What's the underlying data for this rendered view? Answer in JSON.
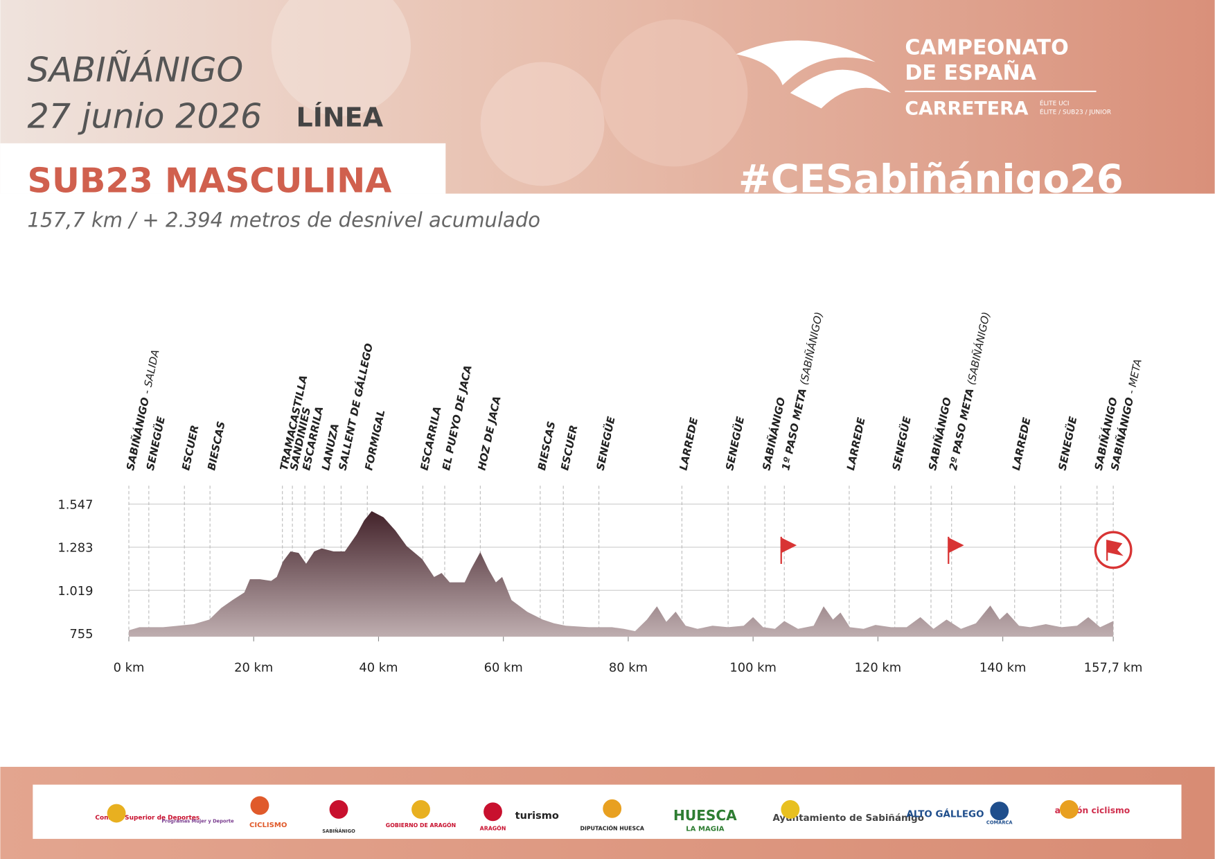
{
  "header": {
    "city": "SABIÑÁNIGO",
    "date": "27 junio 2026",
    "format": "LÍNEA",
    "category": "SUB23 MASCULINA",
    "summary": "157,7 km / + 2.394 metros de desnivel acumulado"
  },
  "logo": {
    "line1": "CAMPEONATO",
    "line2": "DE ESPAÑA",
    "line3": "CARRETERA",
    "tag1": "ÉLITE UCI",
    "tag2": "ÉLITE / SUB23 / JUNIOR"
  },
  "hashtag": "#CESabiñánigo26",
  "chart_data": {
    "type": "area",
    "x": [
      0,
      1.7,
      5.5,
      7.9,
      10.4,
      12.9,
      14.8,
      16.6,
      18.5,
      19.4,
      21.0,
      22.8,
      23.7,
      24.7,
      25.9,
      27.2,
      28.4,
      29.7,
      30.9,
      32.8,
      34.6,
      36.5,
      37.7,
      38.9,
      40.8,
      42.7,
      44.5,
      47.0,
      48.9,
      50.1,
      51.4,
      53.8,
      54.8,
      56.3,
      57.6,
      58.8,
      59.8,
      61.3,
      63.8,
      66.3,
      68.1,
      70.0,
      73.7,
      77.4,
      79.3,
      81.1,
      83.0,
      84.6,
      86.1,
      87.6,
      89.2,
      91.1,
      93.5,
      96.0,
      98.5,
      100.0,
      101.6,
      103.5,
      105.0,
      107.2,
      109.7,
      111.3,
      112.8,
      114.0,
      115.5,
      117.7,
      119.6,
      122.1,
      124.6,
      126.8,
      128.9,
      131.0,
      133.3,
      135.7,
      138.0,
      139.5,
      140.7,
      142.6,
      144.4,
      146.9,
      149.4,
      151.9,
      153.7,
      155.6,
      157.7
    ],
    "values": [
      774,
      793,
      793,
      802,
      812,
      840,
      911,
      959,
      1006,
      1087,
      1087,
      1077,
      1101,
      1196,
      1257,
      1248,
      1182,
      1257,
      1276,
      1257,
      1257,
      1362,
      1447,
      1504,
      1466,
      1385,
      1290,
      1210,
      1101,
      1125,
      1068,
      1068,
      1148,
      1253,
      1148,
      1068,
      1101,
      959,
      888,
      840,
      817,
      802,
      793,
      793,
      783,
      769,
      840,
      921,
      826,
      888,
      802,
      783,
      802,
      793,
      802,
      855,
      793,
      783,
      831,
      783,
      802,
      921,
      840,
      883,
      793,
      783,
      807,
      793,
      793,
      855,
      783,
      840,
      783,
      817,
      926,
      840,
      883,
      802,
      793,
      812,
      793,
      802,
      855,
      793,
      831
    ],
    "xlim": [
      0,
      157.7
    ],
    "ylim": [
      735,
      1660
    ],
    "xticks": [
      {
        "value": 0,
        "label": "0 km"
      },
      {
        "value": 20,
        "label": "20 km"
      },
      {
        "value": 40,
        "label": "40 km"
      },
      {
        "value": 60,
        "label": "60 km"
      },
      {
        "value": 80,
        "label": "80 km"
      },
      {
        "value": 100,
        "label": "100 km"
      },
      {
        "value": 120,
        "label": "120 km"
      },
      {
        "value": 140,
        "label": "140 km"
      },
      {
        "value": 157.7,
        "label": "157,7 km"
      }
    ],
    "yticks": [
      755,
      {
        "value": 1019,
        "label": "1.019"
      },
      {
        "value": 1283,
        "label": "1.283"
      },
      {
        "value": 1547,
        "label": "1.547"
      }
    ],
    "grid": true,
    "annotations": [
      {
        "label": "SABIÑÁNIGO",
        "note": "- SALIDA",
        "x": 0
      },
      {
        "label": "SENEGÜE",
        "x": 3.2
      },
      {
        "label": "ESCUER",
        "x": 8.9
      },
      {
        "label": "BIESCAS",
        "x": 13.0
      },
      {
        "label": "TRAMACASTILLA",
        "x": 24.6
      },
      {
        "label": "SANDINIES",
        "x": 26.2
      },
      {
        "label": "ESCARRILA",
        "x": 28.2
      },
      {
        "label": "LANUZA",
        "x": 31.3
      },
      {
        "label": "SALLENT DE GÁLLEGO",
        "x": 34.0
      },
      {
        "label": "FORMIGAL",
        "x": 38.2
      },
      {
        "label": "ESCARRILA",
        "x": 47.1
      },
      {
        "label": "EL PUEYO DE JACA",
        "x": 50.6
      },
      {
        "label": "HOZ DE JACA",
        "x": 56.3
      },
      {
        "label": "BIESCAS",
        "x": 65.9
      },
      {
        "label": "ESCUER",
        "x": 69.6
      },
      {
        "label": "SENEGÜE",
        "x": 75.3
      },
      {
        "label": "LARREDE",
        "x": 88.6
      },
      {
        "label": "SENEGÜE",
        "x": 96.0
      },
      {
        "label": "SABIÑÁNIGO",
        "x": 101.9
      },
      {
        "label": "1º PASO META",
        "note": "(SABIÑÁNIGO)",
        "x": 105.0
      },
      {
        "label": "LARREDE",
        "x": 115.4
      },
      {
        "label": "SENEGÜE",
        "x": 122.7
      },
      {
        "label": "SABIÑÁNIGO",
        "x": 128.5
      },
      {
        "label": "2º PASO META",
        "note": "(SABIÑÁNIGO)",
        "x": 131.8
      },
      {
        "label": "LARREDE",
        "x": 141.9
      },
      {
        "label": "SENEGÜE",
        "x": 149.3
      },
      {
        "label": "SABIÑÁNIGO",
        "x": 155.1
      },
      {
        "label": "SABIÑÁNIGO",
        "note": "- META",
        "x": 157.7
      }
    ]
  },
  "footer": {
    "logos": [
      "Consejo Superior de Deportes",
      "Programas Mujer y Deporte",
      "CICLISMO",
      "SABIÑÁNIGO",
      "GOBIERNO DE ARAGÓN",
      "ARAGÓN",
      "turismo",
      "DIPUTACIÓN HUESCA",
      "HUESCA",
      "LA MAGIA",
      "Ayuntamiento de Sabiñánigo",
      "ALTO GÁLLEGO",
      "COMARCA",
      "aragón ciclismo"
    ]
  }
}
